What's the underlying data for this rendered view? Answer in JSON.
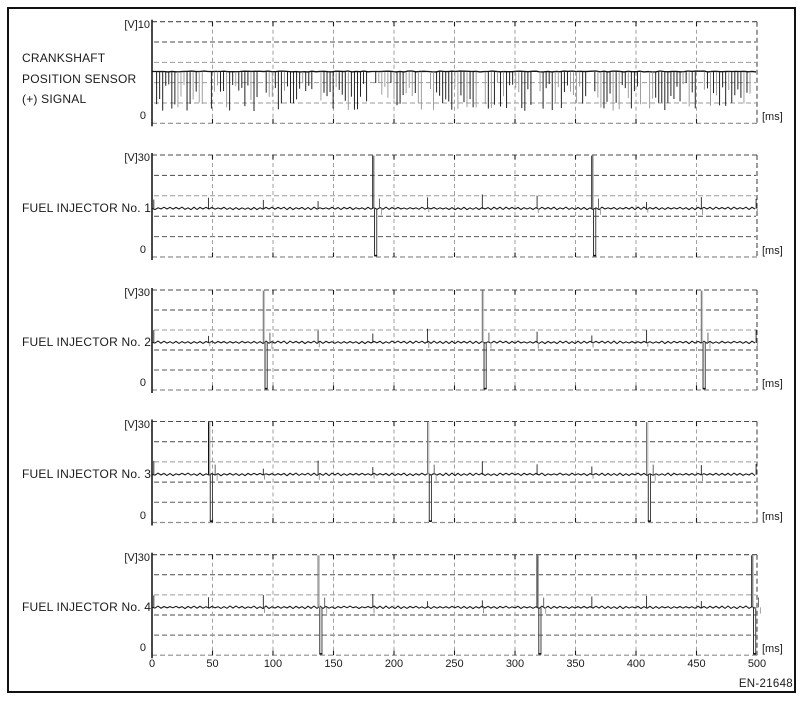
{
  "figure": {
    "code": "EN-21648",
    "background": "#ffffff",
    "ink": "#1a1a1a"
  },
  "x_axis": {
    "unit_label": "[ms]",
    "min_ms": 0,
    "max_ms": 500,
    "tick_step_ms": 50,
    "tick_labels": [
      "0",
      "50",
      "100",
      "150",
      "200",
      "250",
      "300",
      "350",
      "400",
      "450",
      "500"
    ]
  },
  "chart_data": [
    {
      "id": "crankshaft-position-sensor",
      "type": "crank_pulse_train",
      "label_lines": [
        "CRANKSHAFT",
        "POSITION SENSOR",
        "(+) SIGNAL"
      ],
      "y_axis": {
        "top_label": "[V]10",
        "bottom_label": "0",
        "max_v": 10,
        "min_v": 0,
        "divisions": 5
      },
      "signal": {
        "baseline_v": 5.1,
        "tooth_period_ms": 2.515,
        "pulse_depth_v_min": 1.1,
        "pulse_depth_v_max": 3.9,
        "gap_start_ms": 42.5,
        "gap_interval_ms": 45.25,
        "gap_width_ms": 5.5
      }
    },
    {
      "id": "fuel-injector-1",
      "type": "injector",
      "label_lines": [
        "FUEL INJECTOR No. 1"
      ],
      "y_axis": {
        "top_label": "[V]30",
        "bottom_label": "0",
        "max_v": 30,
        "min_v": 0,
        "divisions": 5
      },
      "signal": {
        "baseline_v": 14.3,
        "injection_events_ms": [
          182.5,
          363.5
        ],
        "coupling_blips_ms": [
          1.5,
          46.75,
          92,
          137.25,
          227.75,
          273,
          318.25,
          408.75,
          454,
          499.25
        ],
        "event_peak_v": 30,
        "event_notch_v": 0.4
      }
    },
    {
      "id": "fuel-injector-2",
      "type": "injector",
      "label_lines": [
        "FUEL INJECTOR No. 2"
      ],
      "y_axis": {
        "top_label": "[V]30",
        "bottom_label": "0",
        "max_v": 30,
        "min_v": 0,
        "divisions": 5
      },
      "signal": {
        "baseline_v": 14.3,
        "injection_events_ms": [
          92,
          273,
          454
        ],
        "coupling_blips_ms": [
          1.5,
          46.75,
          137.25,
          182.5,
          227.75,
          318.25,
          363.5,
          408.75,
          499.25
        ],
        "event_peak_v": 30,
        "event_notch_v": 0.4
      }
    },
    {
      "id": "fuel-injector-3",
      "type": "injector",
      "label_lines": [
        "FUEL INJECTOR No. 3"
      ],
      "y_axis": {
        "top_label": "[V]30",
        "bottom_label": "0",
        "max_v": 30,
        "min_v": 0,
        "divisions": 5
      },
      "signal": {
        "baseline_v": 14.3,
        "injection_events_ms": [
          46.75,
          227.75,
          408.75
        ],
        "coupling_blips_ms": [
          1.5,
          92,
          137.25,
          182.5,
          273,
          318.25,
          363.5,
          454,
          499.25
        ],
        "event_peak_v": 30,
        "event_notch_v": 0.4
      }
    },
    {
      "id": "fuel-injector-4",
      "type": "injector",
      "label_lines": [
        "FUEL INJECTOR No. 4"
      ],
      "y_axis": {
        "top_label": "[V]30",
        "bottom_label": "0",
        "max_v": 30,
        "min_v": 0,
        "divisions": 5
      },
      "signal": {
        "baseline_v": 14.3,
        "injection_events_ms": [
          137.25,
          318.25,
          499.25
        ],
        "coupling_blips_ms": [
          1.5,
          46.75,
          92,
          182.5,
          227.75,
          273,
          363.5,
          408.75,
          454
        ],
        "event_peak_v": 30,
        "event_notch_v": 0.4
      }
    }
  ]
}
